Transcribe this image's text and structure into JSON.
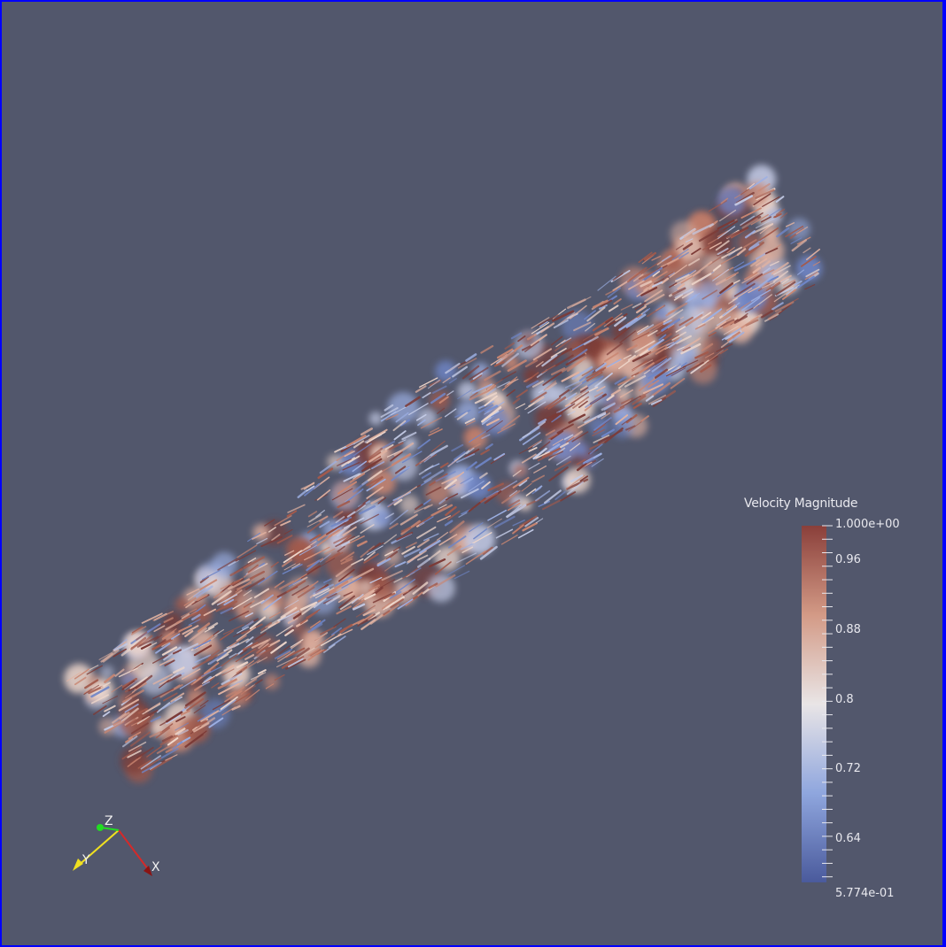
{
  "legend": {
    "title": "Velocity Magnitude",
    "max_label": "1.000e+00",
    "min_label": "5.774e-01",
    "range": [
      0.5774,
      1.0
    ],
    "labels": [
      {
        "value": 0.96,
        "text": "0.96"
      },
      {
        "value": 0.88,
        "text": "0.88"
      },
      {
        "value": 0.8,
        "text": "0.8"
      },
      {
        "value": 0.72,
        "text": "0.72"
      },
      {
        "value": 0.64,
        "text": "0.64"
      }
    ],
    "colormap": [
      "#4a5a9c",
      "#8fa6de",
      "#e9e5e6",
      "#d39a86",
      "#8a3f3a"
    ]
  },
  "axes": {
    "x_label": "X",
    "y_label": "Y",
    "z_label": "Z",
    "x_color": "#d42a2a",
    "y_color": "#f0e020",
    "z_color": "#22dd22"
  },
  "colors": {
    "background": "#52576c",
    "border": "#0000ff"
  }
}
